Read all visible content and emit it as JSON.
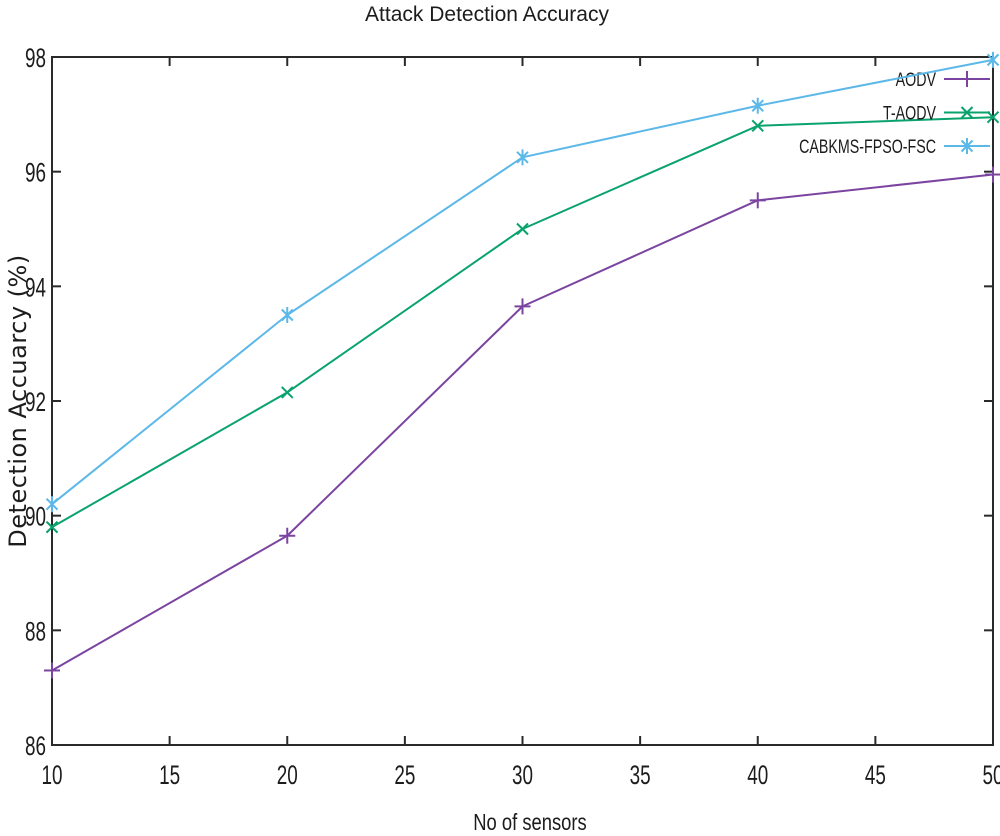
{
  "page": {
    "background": "#ffffff"
  },
  "chart_data": {
    "type": "line",
    "title": "Attack Detection Accuracy",
    "xlabel": "No of sensors",
    "ylabel": "Detection Accuarcy (%)",
    "xlim": [
      10,
      50
    ],
    "ylim": [
      86,
      98
    ],
    "xticks": [
      10,
      15,
      20,
      25,
      30,
      35,
      40,
      45,
      50
    ],
    "yticks": [
      86,
      88,
      90,
      92,
      94,
      96,
      98
    ],
    "grid": false,
    "legend_position": "top-right-inside",
    "axis_color": "#2a2a2a",
    "text_color": "#1c1c1c",
    "x": [
      10,
      20,
      30,
      40,
      50
    ],
    "series": [
      {
        "name": "AODV",
        "color": "#7a44a0",
        "marker": "plus",
        "values": [
          87.3,
          89.65,
          93.65,
          95.5,
          95.95
        ]
      },
      {
        "name": "T-AODV",
        "color": "#0aa36d",
        "marker": "cross",
        "values": [
          89.8,
          92.15,
          95.0,
          96.8,
          96.95
        ]
      },
      {
        "name": "CABKMS-FPSO-FSC",
        "color": "#5cb8e8",
        "marker": "asterisk",
        "values": [
          90.2,
          93.5,
          96.25,
          97.15,
          97.95
        ]
      }
    ]
  }
}
